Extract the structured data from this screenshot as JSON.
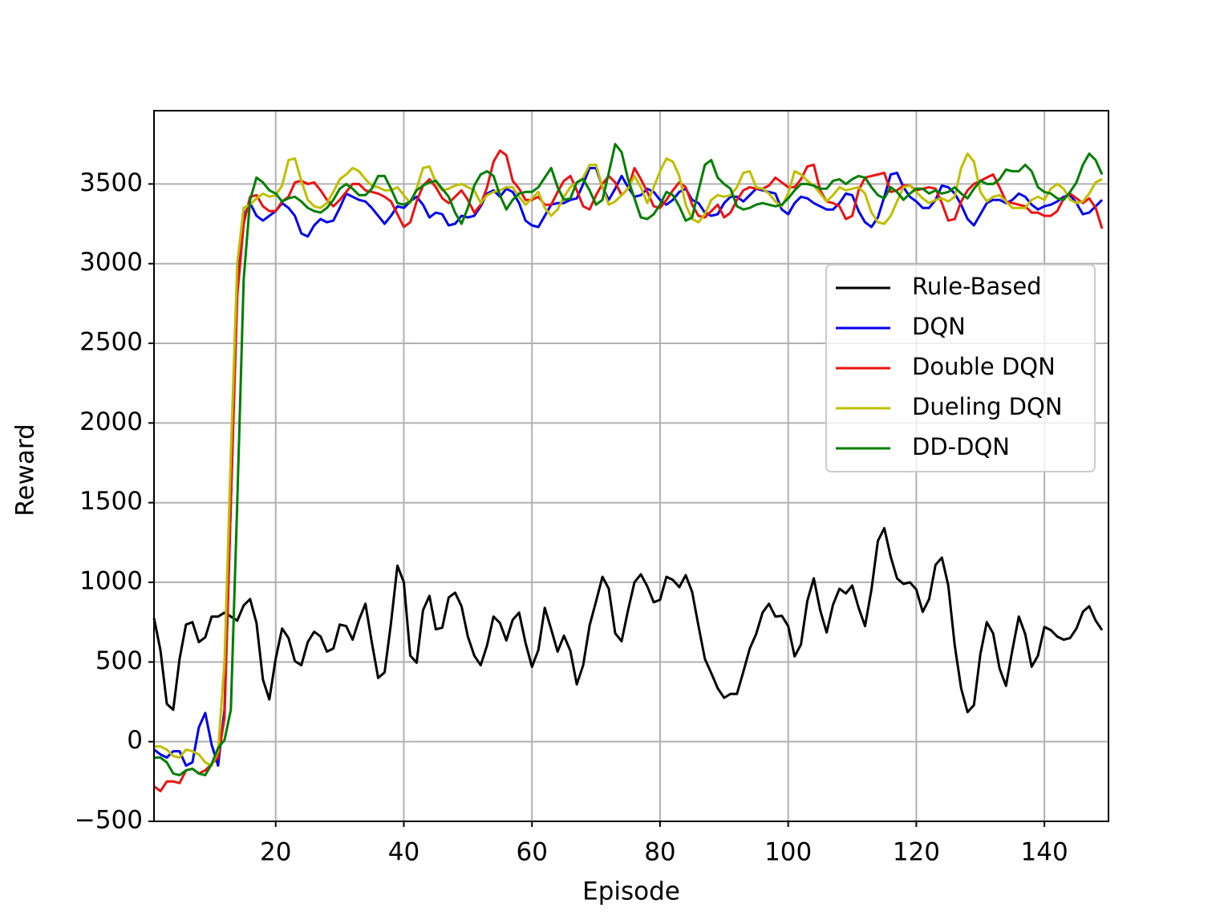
{
  "chart_data": {
    "type": "line",
    "xlabel": "Episode",
    "ylabel": "Reward",
    "x": [
      1,
      2,
      3,
      4,
      5,
      6,
      7,
      8,
      9,
      10,
      11,
      12,
      13,
      14,
      15,
      16,
      17,
      18,
      19,
      20,
      21,
      22,
      23,
      24,
      25,
      26,
      27,
      28,
      29,
      30,
      31,
      32,
      33,
      34,
      35,
      36,
      37,
      38,
      39,
      40,
      41,
      42,
      43,
      44,
      45,
      46,
      47,
      48,
      49,
      50,
      51,
      52,
      53,
      54,
      55,
      56,
      57,
      58,
      59,
      60,
      61,
      62,
      63,
      64,
      65,
      66,
      67,
      68,
      69,
      70,
      71,
      72,
      73,
      74,
      75,
      76,
      77,
      78,
      79,
      80,
      81,
      82,
      83,
      84,
      85,
      86,
      87,
      88,
      89,
      90,
      91,
      92,
      93,
      94,
      95,
      96,
      97,
      98,
      99,
      100,
      101,
      102,
      103,
      104,
      105,
      106,
      107,
      108,
      109,
      110,
      111,
      112,
      113,
      114,
      115,
      116,
      117,
      118,
      119,
      120,
      121,
      122,
      123,
      124,
      125,
      126,
      127,
      128,
      129,
      130,
      131,
      132,
      133,
      134,
      135,
      136,
      137,
      138,
      139,
      140,
      141,
      142,
      143,
      144,
      145,
      146,
      147,
      148,
      149
    ],
    "series": [
      {
        "name": "Rule-Based",
        "color": "#000000",
        "values": [
          775,
          575,
          237,
          200,
          520,
          735,
          750,
          625,
          655,
          785,
          785,
          810,
          785,
          760,
          855,
          895,
          745,
          390,
          265,
          520,
          710,
          650,
          505,
          480,
          625,
          690,
          660,
          565,
          585,
          735,
          725,
          640,
          765,
          865,
          625,
          400,
          435,
          745,
          1105,
          1000,
          540,
          495,
          825,
          915,
          705,
          715,
          905,
          935,
          850,
          660,
          540,
          480,
          605,
          785,
          745,
          635,
          765,
          810,
          620,
          470,
          575,
          840,
          705,
          565,
          665,
          570,
          360,
          480,
          730,
          880,
          1035,
          960,
          680,
          630,
          825,
          1000,
          1050,
          975,
          875,
          890,
          1035,
          1015,
          970,
          1045,
          940,
          725,
          520,
          430,
          335,
          275,
          300,
          300,
          440,
          585,
          675,
          810,
          865,
          785,
          790,
          725,
          535,
          610,
          885,
          1025,
          825,
          685,
          860,
          960,
          930,
          980,
          840,
          725,
          955,
          1260,
          1340,
          1160,
          1025,
          990,
          1000,
          955,
          815,
          895,
          1110,
          1155,
          980,
          605,
          335,
          185,
          230,
          550,
          750,
          680,
          460,
          350,
          575,
          785,
          675,
          470,
          540,
          720,
          700,
          660,
          640,
          650,
          710,
          815,
          850,
          760,
          700
        ]
      },
      {
        "name": "DQN",
        "color": "#0000ee",
        "values": [
          -50,
          -80,
          -100,
          -60,
          -60,
          -150,
          -130,
          90,
          180,
          -20,
          -150,
          200,
          1500,
          2900,
          3300,
          3380,
          3300,
          3270,
          3300,
          3330,
          3380,
          3350,
          3300,
          3190,
          3170,
          3240,
          3280,
          3260,
          3270,
          3350,
          3440,
          3420,
          3400,
          3390,
          3350,
          3300,
          3250,
          3300,
          3360,
          3350,
          3390,
          3420,
          3370,
          3290,
          3320,
          3310,
          3240,
          3250,
          3300,
          3290,
          3300,
          3360,
          3440,
          3460,
          3420,
          3470,
          3450,
          3380,
          3270,
          3240,
          3230,
          3300,
          3370,
          3380,
          3380,
          3400,
          3410,
          3500,
          3600,
          3600,
          3480,
          3400,
          3470,
          3550,
          3480,
          3420,
          3430,
          3470,
          3450,
          3400,
          3370,
          3400,
          3450,
          3470,
          3400,
          3380,
          3320,
          3300,
          3310,
          3380,
          3420,
          3420,
          3390,
          3430,
          3470,
          3460,
          3450,
          3440,
          3340,
          3310,
          3380,
          3420,
          3410,
          3380,
          3360,
          3340,
          3340,
          3380,
          3440,
          3430,
          3330,
          3260,
          3230,
          3290,
          3420,
          3560,
          3570,
          3480,
          3420,
          3390,
          3350,
          3350,
          3400,
          3490,
          3480,
          3440,
          3370,
          3280,
          3240,
          3310,
          3380,
          3400,
          3400,
          3380,
          3400,
          3440,
          3420,
          3370,
          3340,
          3360,
          3370,
          3390,
          3420,
          3430,
          3380,
          3310,
          3320,
          3360,
          3400
        ]
      },
      {
        "name": "Double DQN",
        "color": "#ee1111",
        "values": [
          -280,
          -310,
          -250,
          -250,
          -260,
          -180,
          -170,
          -200,
          -180,
          -140,
          -100,
          150,
          1500,
          2800,
          3250,
          3420,
          3430,
          3360,
          3330,
          3330,
          3390,
          3420,
          3510,
          3520,
          3500,
          3510,
          3460,
          3400,
          3360,
          3400,
          3450,
          3500,
          3500,
          3460,
          3450,
          3440,
          3420,
          3390,
          3310,
          3230,
          3260,
          3390,
          3490,
          3530,
          3480,
          3410,
          3380,
          3420,
          3460,
          3400,
          3320,
          3370,
          3480,
          3640,
          3710,
          3680,
          3520,
          3470,
          3400,
          3400,
          3420,
          3370,
          3370,
          3450,
          3520,
          3550,
          3460,
          3360,
          3340,
          3430,
          3500,
          3550,
          3510,
          3430,
          3470,
          3600,
          3530,
          3450,
          3360,
          3350,
          3400,
          3460,
          3510,
          3480,
          3370,
          3300,
          3290,
          3330,
          3370,
          3290,
          3320,
          3400,
          3460,
          3480,
          3470,
          3470,
          3490,
          3540,
          3510,
          3480,
          3480,
          3530,
          3610,
          3620,
          3460,
          3390,
          3380,
          3360,
          3280,
          3300,
          3460,
          3540,
          3550,
          3560,
          3570,
          3450,
          3460,
          3490,
          3490,
          3460,
          3470,
          3480,
          3470,
          3380,
          3270,
          3280,
          3390,
          3460,
          3500,
          3520,
          3540,
          3560,
          3480,
          3390,
          3380,
          3370,
          3360,
          3320,
          3320,
          3300,
          3300,
          3330,
          3410,
          3440,
          3410,
          3380,
          3410,
          3350,
          3220
        ]
      },
      {
        "name": "Dueling DQN",
        "color": "#bfbf00",
        "values": [
          -30,
          -30,
          -50,
          -90,
          -100,
          -50,
          -60,
          -80,
          -130,
          -150,
          -60,
          500,
          1800,
          3000,
          3350,
          3370,
          3410,
          3440,
          3420,
          3430,
          3490,
          3650,
          3660,
          3520,
          3400,
          3360,
          3350,
          3380,
          3450,
          3530,
          3560,
          3600,
          3580,
          3530,
          3490,
          3480,
          3460,
          3460,
          3480,
          3430,
          3380,
          3470,
          3600,
          3610,
          3510,
          3460,
          3470,
          3490,
          3500,
          3480,
          3460,
          3380,
          3430,
          3450,
          3460,
          3480,
          3480,
          3420,
          3370,
          3410,
          3450,
          3350,
          3300,
          3340,
          3420,
          3480,
          3510,
          3540,
          3620,
          3620,
          3480,
          3370,
          3390,
          3430,
          3470,
          3550,
          3480,
          3380,
          3480,
          3580,
          3660,
          3640,
          3550,
          3370,
          3280,
          3260,
          3310,
          3400,
          3430,
          3420,
          3430,
          3480,
          3570,
          3580,
          3480,
          3470,
          3440,
          3390,
          3360,
          3440,
          3580,
          3560,
          3520,
          3490,
          3440,
          3390,
          3430,
          3480,
          3460,
          3470,
          3480,
          3440,
          3320,
          3260,
          3250,
          3300,
          3390,
          3480,
          3490,
          3450,
          3410,
          3380,
          3400,
          3410,
          3390,
          3420,
          3600,
          3690,
          3640,
          3450,
          3390,
          3420,
          3430,
          3390,
          3350,
          3350,
          3350,
          3400,
          3420,
          3400,
          3470,
          3500,
          3470,
          3400,
          3380,
          3390,
          3440,
          3510,
          3530
        ]
      },
      {
        "name": "DD-DQN",
        "color": "#007f00",
        "values": [
          -100,
          -100,
          -130,
          -200,
          -210,
          -180,
          -170,
          -200,
          -210,
          -140,
          -40,
          10,
          200,
          1500,
          2900,
          3400,
          3540,
          3510,
          3460,
          3440,
          3390,
          3410,
          3420,
          3390,
          3350,
          3330,
          3320,
          3350,
          3400,
          3470,
          3500,
          3470,
          3430,
          3430,
          3470,
          3550,
          3550,
          3470,
          3380,
          3370,
          3390,
          3460,
          3490,
          3510,
          3520,
          3470,
          3420,
          3320,
          3250,
          3350,
          3490,
          3560,
          3580,
          3550,
          3430,
          3340,
          3400,
          3440,
          3450,
          3450,
          3480,
          3540,
          3600,
          3480,
          3400,
          3410,
          3510,
          3530,
          3460,
          3370,
          3400,
          3570,
          3750,
          3700,
          3530,
          3410,
          3290,
          3280,
          3310,
          3370,
          3450,
          3430,
          3360,
          3270,
          3290,
          3460,
          3620,
          3650,
          3540,
          3500,
          3470,
          3360,
          3340,
          3350,
          3370,
          3380,
          3370,
          3360,
          3370,
          3410,
          3460,
          3500,
          3500,
          3490,
          3470,
          3470,
          3520,
          3530,
          3500,
          3530,
          3550,
          3540,
          3480,
          3430,
          3410,
          3480,
          3450,
          3400,
          3440,
          3470,
          3470,
          3440,
          3460,
          3440,
          3450,
          3480,
          3440,
          3410,
          3470,
          3520,
          3500,
          3500,
          3530,
          3590,
          3580,
          3580,
          3620,
          3580,
          3480,
          3450,
          3440,
          3410,
          3400,
          3450,
          3510,
          3620,
          3690,
          3650,
          3560
        ]
      }
    ],
    "xlim": [
      1,
      150
    ],
    "ylim": [
      -500,
      3960
    ],
    "xticks": [
      20,
      40,
      60,
      80,
      100,
      120,
      140
    ],
    "yticks": [
      {
        "value": -500,
        "label": "−500"
      },
      0,
      500,
      1000,
      1500,
      2000,
      2500,
      3000,
      3500
    ],
    "grid": true,
    "legend": "center right"
  }
}
